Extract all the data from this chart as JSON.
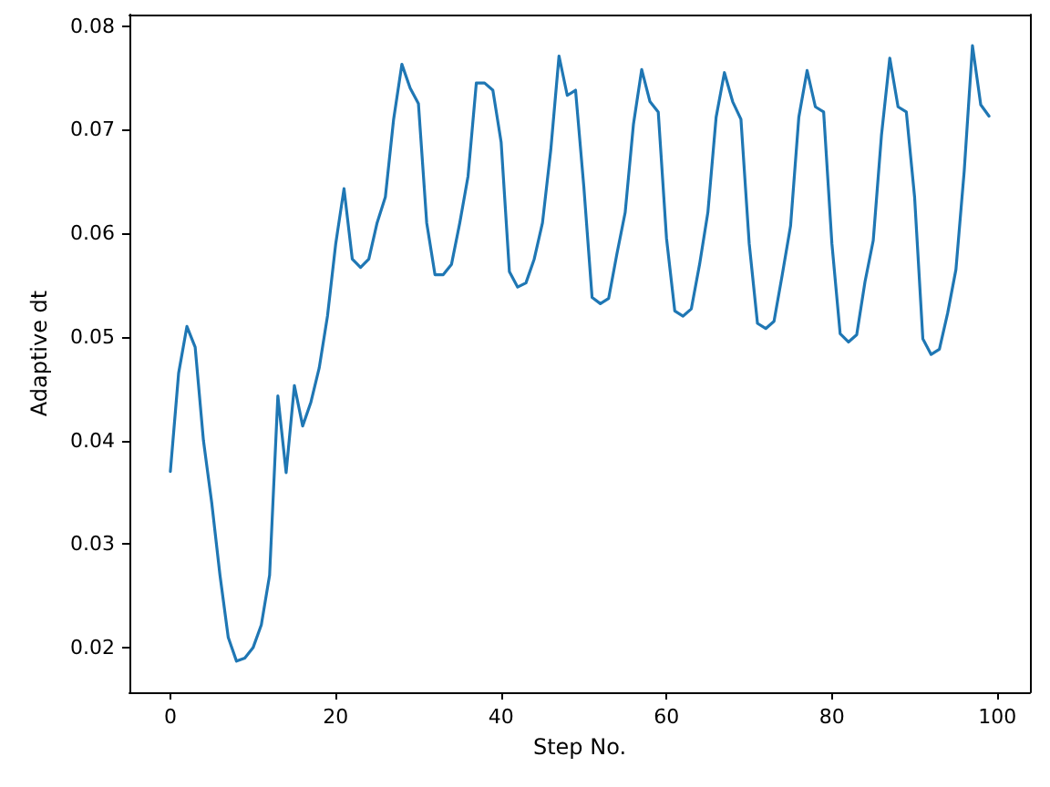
{
  "chart_data": {
    "type": "line",
    "xlabel": "Step No.",
    "ylabel": "Adaptive dt",
    "x": [
      0,
      1,
      2,
      3,
      4,
      5,
      6,
      7,
      8,
      9,
      10,
      11,
      12,
      13,
      14,
      15,
      16,
      17,
      18,
      19,
      20,
      21,
      22,
      23,
      24,
      25,
      26,
      27,
      28,
      29,
      30,
      31,
      32,
      33,
      34,
      35,
      36,
      37,
      38,
      39,
      40,
      41,
      42,
      43,
      44,
      45,
      46,
      47,
      48,
      49,
      50,
      51,
      52,
      53,
      54,
      55,
      56,
      57,
      58,
      59,
      60,
      61,
      62,
      63,
      64,
      65,
      66,
      67,
      68,
      69,
      70,
      71,
      72,
      73,
      74,
      75,
      76,
      77,
      78,
      79,
      80,
      81,
      82,
      83,
      84,
      85,
      86,
      87,
      88,
      89,
      90,
      91,
      92,
      93,
      94,
      95,
      96,
      97,
      98,
      99
    ],
    "series": [
      {
        "color": "#1f77b4",
        "values": [
          0.037,
          0.0465,
          0.051,
          0.049,
          0.04,
          0.034,
          0.027,
          0.021,
          0.0187,
          0.019,
          0.02,
          0.0222,
          0.027,
          0.0443,
          0.0369,
          0.0453,
          0.0414,
          0.0437,
          0.047,
          0.052,
          0.059,
          0.0643,
          0.0575,
          0.0567,
          0.0575,
          0.061,
          0.0635,
          0.071,
          0.0763,
          0.074,
          0.0725,
          0.061,
          0.056,
          0.056,
          0.057,
          0.061,
          0.0655,
          0.0745,
          0.0745,
          0.0738,
          0.0688,
          0.0563,
          0.0548,
          0.0552,
          0.0575,
          0.061,
          0.068,
          0.0771,
          0.0733,
          0.0738,
          0.0645,
          0.0538,
          0.0532,
          0.0537,
          0.058,
          0.062,
          0.0705,
          0.0758,
          0.0727,
          0.0717,
          0.0595,
          0.0525,
          0.052,
          0.0527,
          0.057,
          0.062,
          0.0712,
          0.0755,
          0.0727,
          0.071,
          0.059,
          0.0513,
          0.0508,
          0.0515,
          0.056,
          0.0607,
          0.0712,
          0.0757,
          0.0722,
          0.0717,
          0.059,
          0.0503,
          0.0495,
          0.0502,
          0.0553,
          0.0593,
          0.0695,
          0.0769,
          0.0722,
          0.0717,
          0.0635,
          0.0498,
          0.0483,
          0.0488,
          0.0523,
          0.0565,
          0.066,
          0.0781,
          0.0724,
          0.0713
        ]
      }
    ],
    "xlim": [
      -4.95,
      103.95
    ],
    "xticks": [
      0,
      20,
      40,
      60,
      80,
      100
    ],
    "ylim": [
      0.0157,
      0.0811
    ],
    "yticks": [
      0.02,
      0.03,
      0.04,
      0.05,
      0.06,
      0.07,
      0.08
    ],
    "grid": false,
    "marker": "none",
    "line_style": "solid"
  }
}
